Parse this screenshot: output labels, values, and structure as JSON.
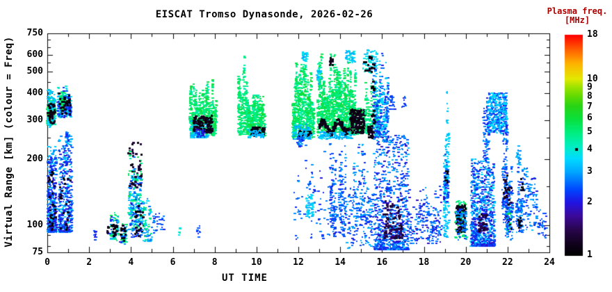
{
  "chart_data": {
    "type": "scatter",
    "title": "EISCAT Tromso Dynasonde, 2026-02-26",
    "xlabel": "UT TIME",
    "ylabel": "Virtual Range [km] (colour = Freq)",
    "x_range": [
      0,
      24
    ],
    "x_major_ticks": [
      0,
      2,
      4,
      6,
      8,
      10,
      12,
      14,
      16,
      18,
      20,
      22,
      24
    ],
    "x_tick_labels": [
      "0",
      "2",
      "4",
      "6",
      "8",
      "10",
      "12",
      "14",
      "16",
      "18",
      "20",
      "22",
      "24"
    ],
    "x_minor_step": 1,
    "y_scale": "log",
    "y_range": [
      75,
      750
    ],
    "y_major_ticks": [
      750,
      600,
      500,
      400,
      300,
      200,
      100,
      75
    ],
    "y_tick_labels": [
      "750",
      "600",
      "500",
      "400",
      "300",
      "200",
      "100",
      "75"
    ],
    "y_minor_ticks": [
      700,
      650,
      550,
      450,
      350,
      250,
      150,
      90,
      80
    ],
    "grid": false,
    "frame": true,
    "colorbar": {
      "title_line1": "Plasma freq.",
      "title_line2": "[MHz]",
      "title_color": "#aa0000",
      "scale": "log",
      "range": [
        1,
        18
      ],
      "ticks": [
        18,
        10,
        9,
        8,
        7,
        6,
        5,
        4,
        3,
        2,
        1
      ],
      "tick_labels": [
        "18",
        "10",
        "9",
        "8",
        "7",
        "6",
        "5",
        "4",
        "3",
        "2",
        "1"
      ],
      "marker_value": 4,
      "marker_color": "#000000"
    },
    "colormap_stops": [
      [
        0.0,
        "#000000"
      ],
      [
        0.06,
        "#140322"
      ],
      [
        0.12,
        "#2a0650"
      ],
      [
        0.18,
        "#3c0a9a"
      ],
      [
        0.24,
        "#2214e2"
      ],
      [
        0.3,
        "#0048ff"
      ],
      [
        0.38,
        "#00a8ff"
      ],
      [
        0.44,
        "#00dcff"
      ],
      [
        0.49,
        "#00eec8"
      ],
      [
        0.56,
        "#00ee7c"
      ],
      [
        0.62,
        "#0ae03c"
      ],
      [
        0.68,
        "#2ad414"
      ],
      [
        0.73,
        "#6cdc00"
      ],
      [
        0.77,
        "#a6e400"
      ],
      [
        0.8,
        "#e2ea00"
      ],
      [
        0.87,
        "#ffb400"
      ],
      [
        0.93,
        "#ff6400"
      ],
      [
        1.0,
        "#ff0000"
      ]
    ],
    "cluster_format": "[t0_hour, t1_hour, range0_km, range1_km, freq0_MHz, freq1_MHz, n_points, mode] mode:0=uniform,1=bottom-weighted,2=columns,3=wavy-band",
    "clusters": [
      [
        0.0,
        0.38,
        285,
        425,
        4.5,
        6.8,
        240,
        2
      ],
      [
        0.0,
        0.38,
        280,
        420,
        3.0,
        3.8,
        90,
        0
      ],
      [
        0.02,
        0.36,
        290,
        360,
        1.0,
        1.2,
        40,
        0
      ],
      [
        0.5,
        1.15,
        310,
        435,
        3.0,
        4.2,
        170,
        2
      ],
      [
        0.5,
        1.15,
        310,
        430,
        1.9,
        2.6,
        100,
        2
      ],
      [
        0.62,
        0.85,
        330,
        405,
        4.5,
        6.0,
        50,
        0
      ],
      [
        0.55,
        1.1,
        320,
        400,
        1.0,
        1.2,
        30,
        0
      ],
      [
        0.02,
        0.44,
        93,
        228,
        2.7,
        3.8,
        240,
        1
      ],
      [
        0.02,
        0.44,
        93,
        205,
        1.8,
        2.6,
        240,
        1
      ],
      [
        0.06,
        0.4,
        95,
        180,
        1.0,
        1.3,
        28,
        1
      ],
      [
        0.55,
        1.2,
        93,
        258,
        2.7,
        3.8,
        220,
        1
      ],
      [
        0.55,
        1.2,
        93,
        235,
        1.8,
        2.6,
        260,
        1
      ],
      [
        0.88,
        1.05,
        238,
        266,
        2.0,
        3.0,
        22,
        0
      ],
      [
        0.6,
        1.15,
        95,
        175,
        1.0,
        1.3,
        22,
        1
      ],
      [
        2.25,
        2.35,
        85,
        95,
        2.0,
        2.6,
        10,
        0
      ],
      [
        2.85,
        2.97,
        90,
        99,
        1.0,
        1.3,
        7,
        0
      ],
      [
        3.0,
        3.42,
        85,
        114,
        4.4,
        6.0,
        46,
        0
      ],
      [
        3.0,
        3.42,
        85,
        110,
        2.0,
        3.5,
        40,
        0
      ],
      [
        3.05,
        3.38,
        87,
        100,
        1.0,
        1.2,
        16,
        0
      ],
      [
        3.48,
        3.82,
        83,
        103,
        4.4,
        6.0,
        28,
        0
      ],
      [
        3.5,
        3.8,
        82,
        98,
        2.0,
        3.0,
        20,
        0
      ],
      [
        3.52,
        3.8,
        84,
        100,
        1.0,
        1.3,
        12,
        0
      ],
      [
        3.88,
        4.52,
        148,
        238,
        1.0,
        1.4,
        55,
        0
      ],
      [
        3.88,
        4.56,
        95,
        228,
        4.2,
        6.0,
        110,
        2
      ],
      [
        3.9,
        4.56,
        90,
        205,
        2.5,
        3.8,
        100,
        2
      ],
      [
        3.98,
        4.6,
        88,
        165,
        1.8,
        2.8,
        70,
        1
      ],
      [
        4.18,
        4.6,
        89,
        122,
        1.0,
        1.3,
        24,
        0
      ],
      [
        4.55,
        5.0,
        84,
        132,
        2.5,
        3.6,
        55,
        1
      ],
      [
        4.6,
        4.97,
        85,
        122,
        4.4,
        5.5,
        22,
        0
      ],
      [
        5.05,
        5.3,
        92,
        113,
        2.0,
        3.0,
        15,
        0
      ],
      [
        5.35,
        5.62,
        95,
        113,
        2.0,
        2.8,
        12,
        0
      ],
      [
        6.25,
        6.4,
        88,
        100,
        3.5,
        5.0,
        8,
        0
      ],
      [
        7.15,
        7.3,
        88,
        101,
        2.0,
        2.8,
        9,
        0
      ],
      [
        6.8,
        8.1,
        255,
        470,
        4.3,
        6.3,
        650,
        2
      ],
      [
        6.85,
        7.75,
        251,
        298,
        2.8,
        3.8,
        120,
        1
      ],
      [
        7.0,
        7.9,
        262,
        316,
        1.0,
        1.3,
        105,
        0
      ],
      [
        7.08,
        7.55,
        251,
        276,
        1.8,
        2.6,
        38,
        0
      ],
      [
        9.12,
        9.6,
        257,
        600,
        4.3,
        6.0,
        280,
        2
      ],
      [
        9.55,
        10.42,
        255,
        432,
        4.3,
        6.3,
        480,
        2
      ],
      [
        9.75,
        10.4,
        256,
        281,
        1.0,
        1.3,
        65,
        0
      ],
      [
        9.6,
        10.35,
        250,
        271,
        2.8,
        3.6,
        48,
        0
      ],
      [
        11.72,
        12.76,
        250,
        602,
        4.3,
        6.3,
        700,
        2
      ],
      [
        12.0,
        12.62,
        252,
        271,
        1.0,
        1.3,
        55,
        0
      ],
      [
        11.76,
        12.62,
        247,
        292,
        2.8,
        3.8,
        95,
        1
      ],
      [
        12.2,
        12.46,
        558,
        615,
        3.0,
        4.0,
        36,
        0
      ],
      [
        11.95,
        12.22,
        228,
        252,
        2.0,
        3.0,
        22,
        0
      ],
      [
        12.9,
        14.75,
        255,
        630,
        4.3,
        6.3,
        1250,
        2
      ],
      [
        13.0,
        14.65,
        256,
        304,
        1.0,
        1.25,
        200,
        3
      ],
      [
        13.45,
        13.66,
        535,
        578,
        1.0,
        1.25,
        16,
        0
      ],
      [
        14.25,
        14.72,
        552,
        628,
        3.0,
        4.0,
        45,
        0
      ],
      [
        12.9,
        13.16,
        438,
        522,
        3.0,
        4.0,
        32,
        0
      ],
      [
        13.0,
        14.6,
        247,
        266,
        2.8,
        3.8,
        110,
        0
      ],
      [
        14.45,
        15.28,
        260,
        342,
        4.5,
        6.0,
        200,
        0
      ],
      [
        14.5,
        15.18,
        262,
        336,
        1.0,
        1.25,
        150,
        0
      ],
      [
        15.08,
        15.78,
        495,
        628,
        3.0,
        4.4,
        75,
        0
      ],
      [
        15.15,
        15.6,
        505,
        600,
        1.0,
        1.2,
        13,
        0
      ],
      [
        15.2,
        15.88,
        255,
        502,
        4.3,
        5.8,
        160,
        2
      ],
      [
        15.55,
        16.32,
        238,
        622,
        2.0,
        2.8,
        240,
        2
      ],
      [
        15.6,
        16.28,
        240,
        600,
        3.0,
        3.7,
        110,
        2
      ],
      [
        15.33,
        15.58,
        249,
        282,
        1.0,
        1.3,
        28,
        0
      ],
      [
        15.5,
        15.68,
        280,
        565,
        1.0,
        1.2,
        18,
        0
      ],
      [
        12.37,
        12.72,
        108,
        138,
        3.0,
        3.8,
        60,
        0
      ],
      [
        13.5,
        13.8,
        88,
        246,
        2.0,
        3.0,
        100,
        2
      ],
      [
        13.95,
        14.27,
        88,
        246,
        2.0,
        3.0,
        100,
        2
      ],
      [
        14.3,
        15.65,
        78,
        252,
        2.0,
        3.2,
        260,
        2
      ],
      [
        15.65,
        17.27,
        77,
        256,
        1.8,
        3.2,
        850,
        1
      ],
      [
        16.1,
        16.98,
        87,
        132,
        1.2,
        1.6,
        110,
        1
      ],
      [
        17.27,
        18.88,
        81,
        162,
        1.8,
        3.0,
        200,
        2
      ],
      [
        16.35,
        16.62,
        334,
        392,
        2.0,
        2.6,
        18,
        0
      ],
      [
        16.95,
        17.16,
        344,
        386,
        2.0,
        2.6,
        12,
        0
      ],
      [
        11.8,
        14.3,
        85,
        242,
        2.0,
        3.0,
        100,
        2
      ],
      [
        18.95,
        19.2,
        86,
        472,
        3.0,
        3.8,
        150,
        2
      ],
      [
        18.97,
        19.18,
        128,
        300,
        2.0,
        2.7,
        55,
        2
      ],
      [
        19.0,
        19.16,
        152,
        176,
        1.0,
        1.2,
        8,
        0
      ],
      [
        19.5,
        20.06,
        87,
        129,
        4.4,
        6.0,
        100,
        0
      ],
      [
        19.56,
        20.0,
        92,
        123,
        1.0,
        1.3,
        85,
        0
      ],
      [
        19.5,
        20.06,
        84,
        121,
        2.2,
        3.2,
        55,
        0
      ],
      [
        20.25,
        21.38,
        80,
        202,
        2.8,
        3.7,
        450,
        1
      ],
      [
        20.25,
        21.38,
        80,
        192,
        1.8,
        2.6,
        420,
        1
      ],
      [
        20.6,
        21.02,
        94,
        113,
        1.2,
        1.5,
        40,
        1
      ],
      [
        20.85,
        21.1,
        190,
        402,
        2.0,
        3.0,
        80,
        2
      ],
      [
        21.05,
        21.97,
        262,
        402,
        2.0,
        2.8,
        250,
        0
      ],
      [
        21.05,
        21.97,
        262,
        400,
        3.0,
        3.7,
        160,
        0
      ],
      [
        21.75,
        21.99,
        100,
        432,
        2.0,
        3.0,
        110,
        2
      ],
      [
        21.8,
        22.0,
        128,
        172,
        1.0,
        1.3,
        13,
        0
      ],
      [
        21.95,
        22.2,
        93,
        121,
        4.5,
        6.5,
        40,
        0
      ],
      [
        21.95,
        22.22,
        95,
        152,
        1.0,
        1.3,
        26,
        0
      ],
      [
        21.9,
        22.28,
        85,
        232,
        2.0,
        3.2,
        120,
        2
      ],
      [
        22.4,
        22.77,
        91,
        232,
        2.0,
        3.2,
        120,
        2
      ],
      [
        22.5,
        22.66,
        97,
        111,
        1.0,
        1.2,
        9,
        0
      ],
      [
        22.45,
        22.62,
        188,
        232,
        2.6,
        3.4,
        26,
        0
      ],
      [
        22.65,
        22.78,
        142,
        162,
        1.0,
        1.2,
        6,
        0
      ],
      [
        22.75,
        23.42,
        94,
        186,
        2.0,
        3.2,
        100,
        2
      ],
      [
        23.4,
        23.88,
        87,
        126,
        2.0,
        3.0,
        40,
        2
      ]
    ]
  }
}
